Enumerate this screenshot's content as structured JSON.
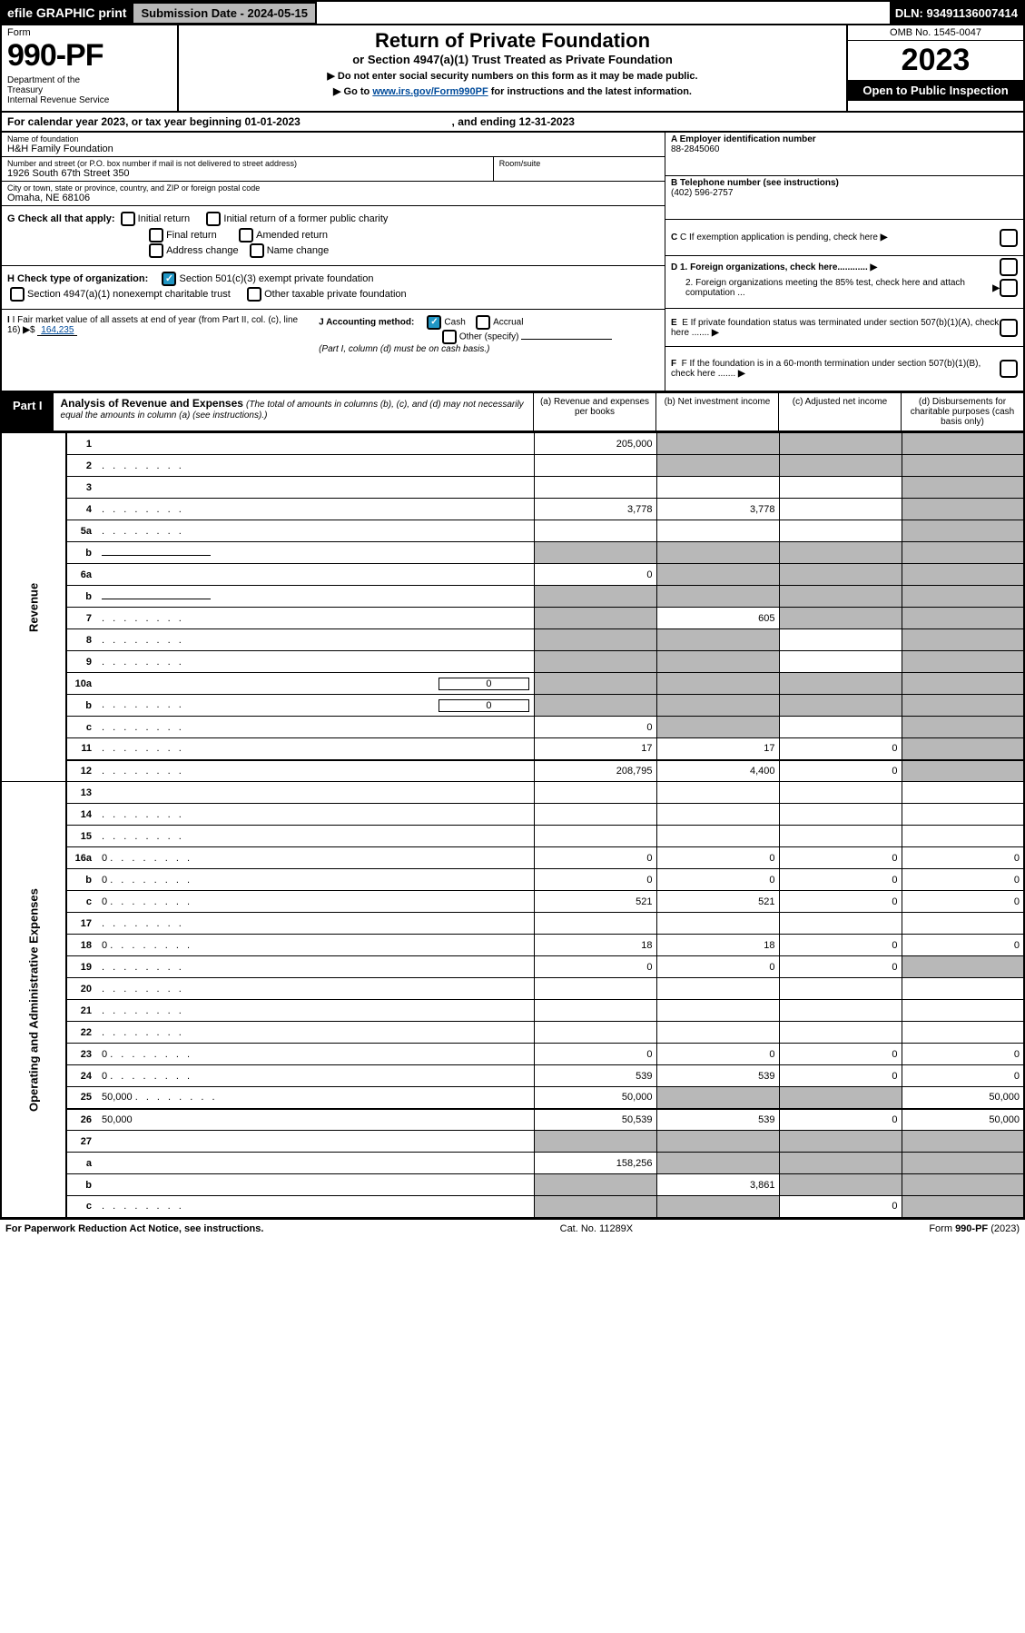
{
  "topbar": {
    "efile": "efile GRAPHIC print",
    "submission": "Submission Date - 2024-05-15",
    "dln": "DLN: 93491136007414"
  },
  "header": {
    "form_word": "Form",
    "form_num": "990-PF",
    "dept": "Department of the Treasury\nInternal Revenue Service",
    "title": "Return of Private Foundation",
    "subtitle": "or Section 4947(a)(1) Trust Treated as Private Foundation",
    "instr1": "▶ Do not enter social security numbers on this form as it may be made public.",
    "instr2_pre": "▶ Go to ",
    "instr2_link": "www.irs.gov/Form990PF",
    "instr2_post": " for instructions and the latest information.",
    "omb": "OMB No. 1545-0047",
    "year": "2023",
    "open": "Open to Public Inspection"
  },
  "calyear": {
    "pre": "For calendar year 2023, or tax year beginning ",
    "begin": "01-01-2023",
    "mid": ", and ending ",
    "end": "12-31-2023"
  },
  "info": {
    "name_lbl": "Name of foundation",
    "name": "H&H Family Foundation",
    "addr_lbl": "Number and street (or P.O. box number if mail is not delivered to street address)",
    "addr": "1926 South 67th Street 350",
    "room_lbl": "Room/suite",
    "city_lbl": "City or town, state or province, country, and ZIP or foreign postal code",
    "city": "Omaha, NE  68106",
    "a_lbl": "A Employer identification number",
    "a_val": "88-2845060",
    "b_lbl": "B Telephone number (see instructions)",
    "b_val": "(402) 596-2757",
    "c_lbl": "C If exemption application is pending, check here",
    "d1": "D 1. Foreign organizations, check here............",
    "d2": "2. Foreign organizations meeting the 85% test, check here and attach computation ...",
    "e": "E  If private foundation status was terminated under section 507(b)(1)(A), check here .......",
    "f": "F  If the foundation is in a 60-month termination under section 507(b)(1)(B), check here .......",
    "g_lbl": "G Check all that apply:",
    "g_opts": [
      "Initial return",
      "Initial return of a former public charity",
      "Final return",
      "Amended return",
      "Address change",
      "Name change"
    ],
    "h_lbl": "H Check type of organization:",
    "h1": "Section 501(c)(3) exempt private foundation",
    "h2": "Section 4947(a)(1) nonexempt charitable trust",
    "h3": "Other taxable private foundation",
    "i_lbl": "I Fair market value of all assets at end of year (from Part II, col. (c), line 16)",
    "i_val": "164,235",
    "j_lbl": "J Accounting method:",
    "j_cash": "Cash",
    "j_accr": "Accrual",
    "j_other": "Other (specify)",
    "j_note": "(Part I, column (d) must be on cash basis.)"
  },
  "part1": {
    "label": "Part I",
    "title": "Analysis of Revenue and Expenses",
    "note": "(The total of amounts in columns (b), (c), and (d) may not necessarily equal the amounts in column (a) (see instructions).)",
    "col_a": "(a)   Revenue and expenses per books",
    "col_b": "(b)   Net investment income",
    "col_c": "(c)   Adjusted net income",
    "col_d": "(d)   Disbursements for charitable purposes (cash basis only)",
    "side_rev": "Revenue",
    "side_exp": "Operating and Administrative Expenses"
  },
  "rows": [
    {
      "n": "1",
      "d": "",
      "a": "205,000",
      "b": "",
      "c": "",
      "sb": true,
      "sc": true,
      "sd": true
    },
    {
      "n": "2",
      "d": "",
      "dots": true,
      "a": "",
      "b": "",
      "c": "",
      "sb": true,
      "sc": true,
      "sd": true,
      "noborder": true
    },
    {
      "n": "3",
      "d": "",
      "a": "",
      "b": "",
      "c": "",
      "sd": true
    },
    {
      "n": "4",
      "d": "",
      "dots": true,
      "a": "3,778",
      "b": "3,778",
      "c": "",
      "sd": true
    },
    {
      "n": "5a",
      "d": "",
      "dots": true,
      "a": "",
      "b": "",
      "c": "",
      "sd": true
    },
    {
      "n": "b",
      "d": "",
      "inset": true,
      "a": "",
      "b": "",
      "c": "",
      "sa": true,
      "sb": true,
      "sc": true,
      "sd": true
    },
    {
      "n": "6a",
      "d": "",
      "a": "0",
      "b": "",
      "c": "",
      "sb": true,
      "sc": true,
      "sd": true
    },
    {
      "n": "b",
      "d": "",
      "inset": true,
      "a": "",
      "b": "",
      "c": "",
      "sa": true,
      "sb": true,
      "sc": true,
      "sd": true
    },
    {
      "n": "7",
      "d": "",
      "dots": true,
      "a": "",
      "b": "605",
      "c": "",
      "sa": true,
      "sc": true,
      "sd": true
    },
    {
      "n": "8",
      "d": "",
      "dots": true,
      "a": "",
      "b": "",
      "c": "",
      "sa": true,
      "sb": true,
      "sd": true
    },
    {
      "n": "9",
      "d": "",
      "dots": true,
      "a": "",
      "b": "",
      "c": "",
      "sa": true,
      "sb": true,
      "sd": true
    },
    {
      "n": "10a",
      "d": "",
      "inset": true,
      "iv": "0",
      "a": "",
      "b": "",
      "c": "",
      "sa": true,
      "sb": true,
      "sc": true,
      "sd": true
    },
    {
      "n": "b",
      "d": "",
      "dots": true,
      "inset": true,
      "iv": "0",
      "a": "",
      "b": "",
      "c": "",
      "sa": true,
      "sb": true,
      "sc": true,
      "sd": true
    },
    {
      "n": "c",
      "d": "",
      "dots": true,
      "a": "0",
      "b": "",
      "c": "",
      "sb": true,
      "sd": true
    },
    {
      "n": "11",
      "d": "",
      "dots": true,
      "a": "17",
      "b": "17",
      "c": "0",
      "sd": true
    },
    {
      "n": "12",
      "d": "",
      "dots": true,
      "a": "208,795",
      "b": "4,400",
      "c": "0",
      "sd": true,
      "thick": true
    }
  ],
  "exprows": [
    {
      "n": "13",
      "d": "",
      "a": "",
      "b": "",
      "c": ""
    },
    {
      "n": "14",
      "d": "",
      "dots": true,
      "a": "",
      "b": "",
      "c": ""
    },
    {
      "n": "15",
      "d": "",
      "dots": true,
      "a": "",
      "b": "",
      "c": ""
    },
    {
      "n": "16a",
      "d": "0",
      "dots": true,
      "a": "0",
      "b": "0",
      "c": "0"
    },
    {
      "n": "b",
      "d": "0",
      "dots": true,
      "a": "0",
      "b": "0",
      "c": "0"
    },
    {
      "n": "c",
      "d": "0",
      "dots": true,
      "a": "521",
      "b": "521",
      "c": "0"
    },
    {
      "n": "17",
      "d": "",
      "dots": true,
      "a": "",
      "b": "",
      "c": ""
    },
    {
      "n": "18",
      "d": "0",
      "dots": true,
      "a": "18",
      "b": "18",
      "c": "0"
    },
    {
      "n": "19",
      "d": "",
      "dots": true,
      "a": "0",
      "b": "0",
      "c": "0",
      "sd": true
    },
    {
      "n": "20",
      "d": "",
      "dots": true,
      "a": "",
      "b": "",
      "c": ""
    },
    {
      "n": "21",
      "d": "",
      "dots": true,
      "a": "",
      "b": "",
      "c": ""
    },
    {
      "n": "22",
      "d": "",
      "dots": true,
      "a": "",
      "b": "",
      "c": ""
    },
    {
      "n": "23",
      "d": "0",
      "dots": true,
      "a": "0",
      "b": "0",
      "c": "0"
    },
    {
      "n": "24",
      "d": "0",
      "dots": true,
      "a": "539",
      "b": "539",
      "c": "0"
    },
    {
      "n": "25",
      "d": "50,000",
      "dots": true,
      "a": "50,000",
      "b": "",
      "c": "",
      "sb": true,
      "sc": true
    },
    {
      "n": "26",
      "d": "50,000",
      "a": "50,539",
      "b": "539",
      "c": "0",
      "thick": true
    },
    {
      "n": "27",
      "d": "",
      "a": "",
      "b": "",
      "c": "",
      "sa": true,
      "sb": true,
      "sc": true,
      "sd": true
    },
    {
      "n": "a",
      "d": "",
      "a": "158,256",
      "b": "",
      "c": "",
      "sb": true,
      "sc": true,
      "sd": true
    },
    {
      "n": "b",
      "d": "",
      "a": "",
      "b": "3,861",
      "c": "",
      "sa": true,
      "sc": true,
      "sd": true
    },
    {
      "n": "c",
      "d": "",
      "dots": true,
      "a": "",
      "b": "",
      "c": "0",
      "sa": true,
      "sb": true,
      "sd": true
    }
  ],
  "footer": {
    "left": "For Paperwork Reduction Act Notice, see instructions.",
    "mid": "Cat. No. 11289X",
    "right": "Form 990-PF (2023)"
  }
}
